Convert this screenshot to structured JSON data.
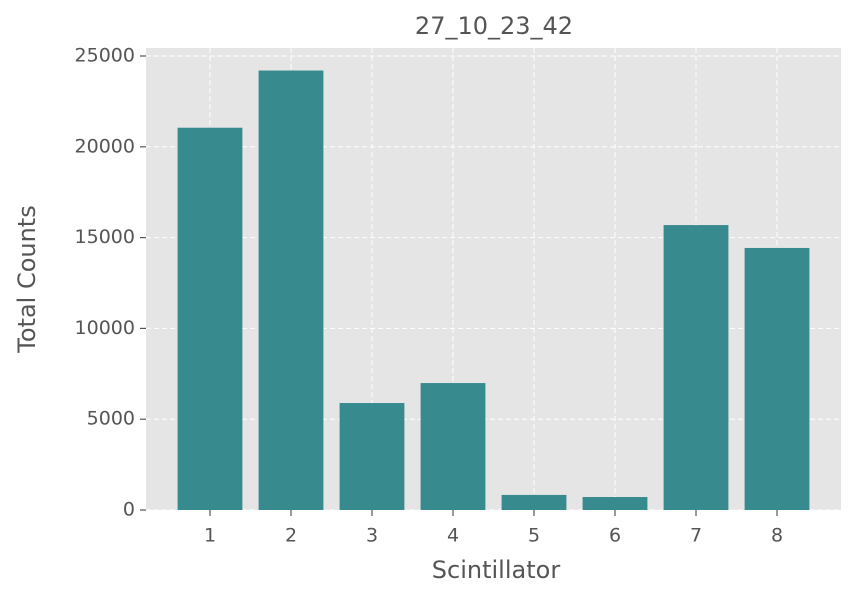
{
  "chart_data": {
    "type": "bar",
    "title": "27_10_23_42",
    "xlabel": "Scintillator",
    "ylabel": "Total Counts",
    "x": [
      1,
      2,
      3,
      4,
      5,
      6,
      7,
      8
    ],
    "values": [
      21050,
      24200,
      5890,
      6990,
      830,
      715,
      15690,
      14430
    ],
    "color": "#378b8f",
    "bar_width": 0.8,
    "xlim": [
      0.21,
      8.79
    ],
    "xticks": [
      1,
      2,
      3,
      4,
      5,
      6,
      7,
      8
    ],
    "ylim": [
      0,
      25440
    ],
    "yticks": [
      0,
      5000,
      10000,
      15000,
      20000,
      25000
    ],
    "grid": true
  }
}
